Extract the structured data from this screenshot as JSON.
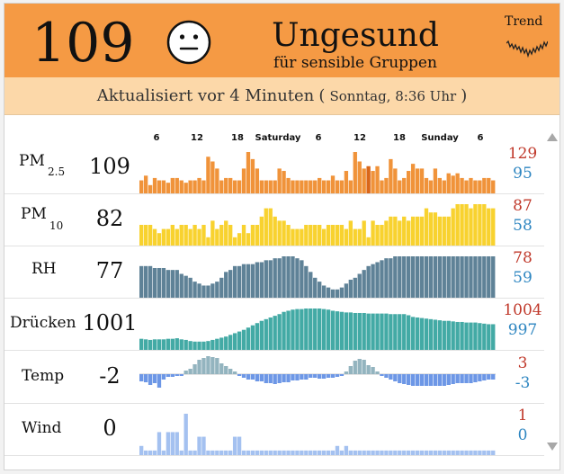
{
  "header": {
    "aqi": "109",
    "face_icon": "neutral-face-icon",
    "status_main": "Ungesund",
    "status_sub": "für sensible Gruppen",
    "trend_label": "Trend",
    "trend_icon": "sparkline-icon",
    "color": "#f59a44"
  },
  "updated": {
    "main": "Aktualisiert vor 4 Minuten",
    "open": "(",
    "time": "Sonntag, 8:36 Uhr",
    "close": ")"
  },
  "axis_ticks": [
    "6",
    "12",
    "18",
    "Saturday",
    "6",
    "12",
    "18",
    "Sunday",
    "6"
  ],
  "scroll": {
    "up_icon": "triangle-up-icon",
    "down_icon": "triangle-down-icon"
  },
  "rows": [
    {
      "label": "PM",
      "sub": "2.5",
      "value": "109",
      "max": "129",
      "min": "95",
      "color": "#f0933a",
      "highlight_color": "#d9661a",
      "chart_data": {
        "type": "bar",
        "values": [
          104,
          106,
          102,
          105,
          104,
          104,
          103,
          105,
          105,
          104,
          103,
          104,
          104,
          105,
          104,
          114,
          112,
          109,
          104,
          105,
          105,
          104,
          104,
          109,
          116,
          113,
          109,
          104,
          104,
          104,
          104,
          109,
          108,
          105,
          104,
          104,
          104,
          104,
          104,
          104,
          105,
          104,
          104,
          106,
          104,
          104,
          108,
          104,
          116,
          112,
          109,
          110,
          108,
          110,
          104,
          105,
          113,
          109,
          104,
          105,
          108,
          111,
          109,
          109,
          105,
          104,
          109,
          105,
          104,
          107,
          106,
          107,
          105,
          104,
          105,
          104,
          104,
          105,
          105,
          104
        ],
        "highlight_index": 51
      }
    },
    {
      "label": "PM",
      "sub": "10",
      "value": "82",
      "max": "87",
      "min": "58",
      "color": "#f8d22f",
      "chart_data": {
        "type": "bar",
        "values": [
          74,
          74,
          74,
          73,
          72,
          73,
          73,
          74,
          73,
          74,
          74,
          73,
          74,
          73,
          74,
          71,
          75,
          73,
          74,
          75,
          74,
          71,
          72,
          74,
          72,
          74,
          74,
          76,
          78,
          78,
          76,
          75,
          75,
          74,
          73,
          73,
          73,
          74,
          74,
          74,
          74,
          73,
          74,
          74,
          74,
          74,
          73,
          75,
          73,
          73,
          75,
          71,
          75,
          74,
          74,
          75,
          76,
          76,
          75,
          76,
          75,
          76,
          76,
          76,
          78,
          77,
          77,
          76,
          76,
          76,
          78,
          79,
          79,
          79,
          78,
          79,
          79,
          79,
          78,
          78
        ]
      }
    },
    {
      "label": "RH",
      "sub": "",
      "value": "77",
      "max": "78",
      "min": "59",
      "color": "#5f8297",
      "chart_data": {
        "type": "bar",
        "values": [
          72,
          72,
          72,
          71,
          71,
          71,
          70,
          70,
          70,
          68,
          67,
          66,
          64,
          63,
          62,
          62,
          63,
          64,
          66,
          69,
          70,
          72,
          72,
          73,
          73,
          73,
          74,
          74,
          75,
          75,
          76,
          76,
          77,
          77,
          77,
          76,
          75,
          72,
          69,
          66,
          64,
          62,
          61,
          60,
          60,
          61,
          63,
          65,
          66,
          68,
          70,
          72,
          73,
          74,
          75,
          76,
          76,
          77,
          77,
          77,
          77,
          77,
          77,
          77,
          77,
          77,
          77,
          77,
          77,
          77,
          77,
          77,
          77,
          77,
          77,
          77,
          77,
          77,
          77,
          77
        ]
      }
    },
    {
      "label": "Drücken",
      "sub": "",
      "value": "1001",
      "max": "1004",
      "min": "997",
      "color": "#43aaa5",
      "chart_data": {
        "type": "bar",
        "values": [
          998.4,
          998.3,
          998.2,
          998.3,
          998.3,
          998.3,
          998.4,
          998.4,
          998.5,
          998.3,
          998.2,
          998.0,
          997.9,
          997.9,
          997.9,
          998.0,
          998.2,
          998.4,
          998.6,
          998.8,
          999.1,
          999.4,
          999.7,
          1000.0,
          1000.4,
          1000.8,
          1001.2,
          1001.6,
          1001.9,
          1002.2,
          1002.5,
          1002.8,
          1003.2,
          1003.4,
          1003.6,
          1003.7,
          1003.7,
          1003.8,
          1003.8,
          1003.8,
          1003.8,
          1003.7,
          1003.6,
          1003.4,
          1003.3,
          1003.2,
          1003.1,
          1003.1,
          1003.0,
          1003.0,
          1003.0,
          1002.9,
          1002.9,
          1002.9,
          1002.9,
          1002.9,
          1002.8,
          1002.8,
          1002.8,
          1002.8,
          1002.6,
          1002.3,
          1002.2,
          1002.1,
          1002.0,
          1001.9,
          1001.8,
          1001.7,
          1001.6,
          1001.6,
          1001.5,
          1001.4,
          1001.4,
          1001.3,
          1001.3,
          1001.3,
          1001.2,
          1001.1,
          1001.0,
          1001.0
        ]
      }
    },
    {
      "label": "Temp",
      "sub": "",
      "value": "-2",
      "max": "3",
      "min": "-3",
      "color_cold": "#6d97e6",
      "color_warm": "#93b4bf",
      "chart_data": {
        "type": "bar",
        "zero_line": 0,
        "values": [
          -0.8,
          -0.9,
          -1.2,
          -1.0,
          -1.5,
          -0.6,
          -0.3,
          -0.3,
          -0.2,
          -0.2,
          0.4,
          0.6,
          1.1,
          1.6,
          1.8,
          2.0,
          1.9,
          1.8,
          1.2,
          0.9,
          0.6,
          0.3,
          -0.2,
          -0.4,
          -0.6,
          -0.6,
          -0.8,
          -0.8,
          -1.0,
          -1.0,
          -1.1,
          -1.0,
          -0.9,
          -0.9,
          -0.7,
          -0.7,
          -0.6,
          -0.6,
          -0.4,
          -0.4,
          -0.5,
          -0.5,
          -0.4,
          -0.4,
          -0.3,
          -0.2,
          0.3,
          0.9,
          1.5,
          1.7,
          1.6,
          1.0,
          0.8,
          0.3,
          -0.2,
          -0.4,
          -0.6,
          -0.8,
          -1.0,
          -1.1,
          -1.2,
          -1.3,
          -1.3,
          -1.3,
          -1.3,
          -1.3,
          -1.3,
          -1.3,
          -1.3,
          -1.2,
          -1.1,
          -1.0,
          -1.0,
          -1.0,
          -1.0,
          -0.9,
          -0.8,
          -0.7,
          -0.6,
          -0.6
        ]
      }
    },
    {
      "label": "Wind",
      "sub": "",
      "value": "0",
      "max": "1",
      "min": "0",
      "color": "#a4c1f0",
      "chart_data": {
        "type": "bar",
        "values": [
          0.2,
          0.1,
          0.1,
          0.1,
          0.5,
          0.1,
          0.5,
          0.5,
          0.5,
          0.1,
          0.9,
          0.1,
          0.1,
          0.4,
          0.4,
          0.1,
          0.1,
          0.1,
          0.1,
          0.1,
          0.1,
          0.4,
          0.4,
          0.1,
          0.1,
          0.1,
          0.1,
          0.1,
          0.1,
          0.1,
          0.1,
          0.1,
          0.1,
          0.1,
          0.1,
          0.1,
          0.1,
          0.1,
          0.1,
          0.1,
          0.1,
          0.1,
          0.1,
          0.1,
          0.2,
          0.1,
          0.2,
          0.1,
          0.1,
          0.1,
          0.1,
          0.1,
          0.1,
          0.1,
          0.1,
          0.1,
          0.1,
          0.1,
          0.1,
          0.1,
          0.1,
          0.1,
          0.1,
          0.1,
          0.1,
          0.1,
          0.1,
          0.1,
          0.1,
          0.1,
          0.1,
          0.1,
          0.1,
          0.1,
          0.1,
          0.1,
          0.1,
          0.1,
          0.1,
          0.1
        ]
      }
    }
  ]
}
